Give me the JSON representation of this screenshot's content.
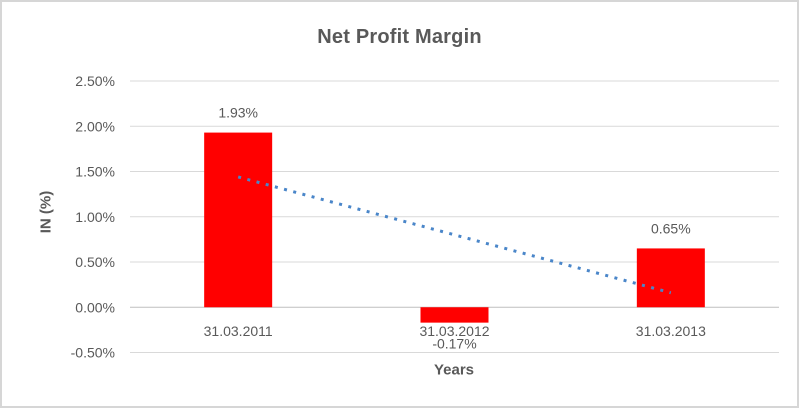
{
  "window": {
    "background_color": "#ffffff",
    "border_color": "#d6d6d6"
  },
  "chart_data": {
    "type": "bar",
    "title": "Net Profit Margin",
    "xlabel": "Years",
    "ylabel": "IN (%)",
    "categories": [
      "31.03.2011",
      "31.03.2012",
      "31.03.2013"
    ],
    "values": [
      1.93,
      -0.17,
      0.65
    ],
    "data_labels": [
      "1.93%",
      "-0.17%",
      "0.65%"
    ],
    "y_ticks": [
      "2.50%",
      "2.00%",
      "1.50%",
      "1.00%",
      "0.50%",
      "0.00%",
      "-0.50%"
    ],
    "y_tick_values": [
      2.5,
      2.0,
      1.5,
      1.0,
      0.5,
      0.0,
      -0.5
    ],
    "ylim": [
      -0.5,
      2.5
    ],
    "grid": true,
    "legend": "none",
    "bar_color": "#ff0000",
    "gridline_color": "#d9d9d9",
    "axis_line_color": "#bfbfbf",
    "label_color": "#595959",
    "trendline": {
      "type": "linear",
      "style": "dotted",
      "color": "#4a86c9",
      "start_value": 1.44,
      "end_value": 0.16
    }
  }
}
